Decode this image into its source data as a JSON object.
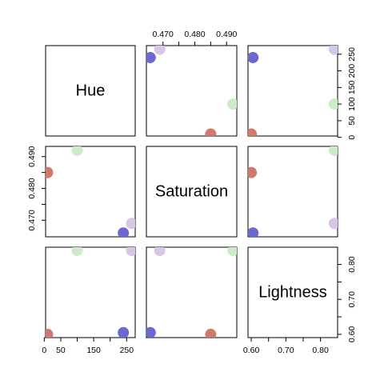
{
  "chart_data": {
    "type": "scatter-matrix",
    "variables": [
      "Hue",
      "Saturation",
      "Lightness"
    ],
    "points": [
      {
        "color": "#d07a6e",
        "hue": 10,
        "saturation": 0.485,
        "lightness": 0.6
      },
      {
        "color": "#cdebc7",
        "hue": 100,
        "saturation": 0.492,
        "lightness": 0.84
      },
      {
        "color": "#d8c6e6",
        "hue": 265,
        "saturation": 0.469,
        "lightness": 0.84
      },
      {
        "color": "#6c68d1",
        "hue": 240,
        "saturation": 0.466,
        "lightness": 0.605
      }
    ],
    "axes": {
      "hue": {
        "range": [
          4,
          276
        ],
        "ticks": [
          0,
          50,
          150,
          250
        ],
        "tick_labels": [
          "0",
          "50",
          "150",
          "250"
        ],
        "minor_ticks": [
          100,
          200
        ]
      },
      "hue_right": {
        "ticks": [
          0,
          50,
          100,
          150,
          200,
          250
        ],
        "tick_labels": [
          "0",
          "50",
          "100",
          "150",
          "200",
          "250"
        ]
      },
      "saturation": {
        "range": [
          0.4648,
          0.4932
        ],
        "ticks": [
          0.47,
          0.48,
          0.49
        ],
        "tick_labels": [
          "0.470",
          "0.480",
          "0.490"
        ],
        "minor_ticks": [
          0.475,
          0.485
        ]
      },
      "lightness": {
        "range": [
          0.5906,
          0.8494
        ],
        "ticks": [
          0.6,
          0.7,
          0.8
        ],
        "tick_labels": [
          "0.60",
          "0.70",
          "0.80"
        ],
        "minor_ticks": [
          0.65,
          0.75
        ]
      }
    }
  }
}
